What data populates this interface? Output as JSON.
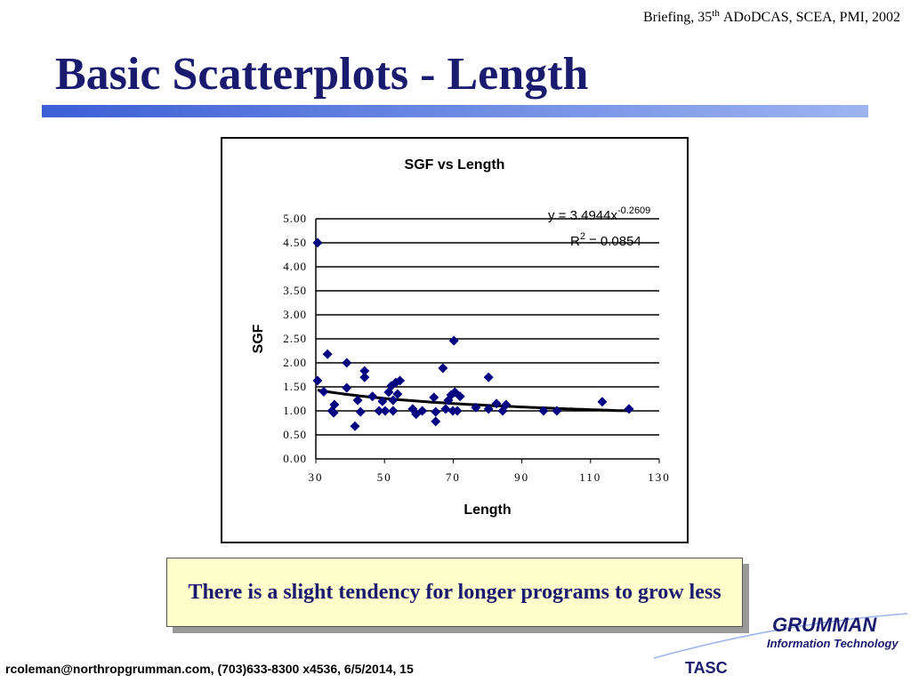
{
  "header": {
    "text": "Briefing, 35",
    "superscript": "th",
    "rest": "ADoDCAS, SCEA, PMI, 2002"
  },
  "title": "Basic Scatterplots - Length",
  "chart_data": {
    "type": "scatter",
    "title": "SGF vs Length",
    "x_label": "Length",
    "y_label": "SGF",
    "color": "#000080",
    "x": [
      30.5,
      30.5,
      32.3,
      33.4,
      34.7,
      35.4,
      35.2,
      39,
      39,
      41.4,
      42.2,
      43,
      44.2,
      44.2,
      46.5,
      48.4,
      49.4,
      50.2,
      51.2,
      52,
      52.5,
      52.5,
      53.3,
      53.8,
      54.5,
      58.2,
      59.2,
      61,
      64.4,
      64.9,
      64.9,
      67,
      67.8,
      68.6,
      69.4,
      69.9,
      70.2,
      70.5,
      71.2,
      72,
      76.6,
      80.3,
      80.3,
      82.6,
      84.4,
      85.4,
      96.3,
      100.2,
      113.4,
      121.2
    ],
    "values": [
      4.5,
      1.63,
      1.4,
      2.18,
      1.0,
      1.13,
      0.96,
      2.0,
      1.48,
      0.68,
      1.22,
      0.98,
      1.83,
      1.7,
      1.3,
      1.0,
      1.2,
      1.0,
      1.39,
      1.52,
      1.0,
      1.22,
      1.59,
      1.35,
      1.63,
      1.04,
      0.93,
      1.0,
      1.28,
      0.98,
      0.78,
      1.89,
      1.04,
      1.22,
      1.33,
      1.0,
      2.46,
      1.39,
      1.0,
      1.3,
      1.07,
      1.7,
      1.04,
      1.15,
      1.0,
      1.13,
      1.0,
      1.0,
      1.19,
      1.04
    ],
    "xlim": [
      30,
      130
    ],
    "xticks": [
      30,
      50,
      70,
      90,
      110,
      130
    ],
    "ylim": [
      0,
      5
    ],
    "yticks": [
      {
        "value": 0,
        "label": "0.00"
      },
      {
        "value": 0.5,
        "label": "0.50"
      },
      {
        "value": 1,
        "label": "1.00"
      },
      {
        "value": 1.5,
        "label": "1.50"
      },
      {
        "value": 2,
        "label": "2.00"
      },
      {
        "value": 2.5,
        "label": "2.50"
      },
      {
        "value": 3,
        "label": "3.00"
      },
      {
        "value": 3.5,
        "label": "3.50"
      },
      {
        "value": 4,
        "label": "4.00"
      },
      {
        "value": 4.5,
        "label": "4.50"
      },
      {
        "value": 5,
        "label": "5.00"
      }
    ],
    "grid": true,
    "trendline": {
      "type": "power",
      "coefficient": 3.4944,
      "exponent": -0.2609,
      "color": "#000000",
      "equation": "y = 3.4944x",
      "exponent_label": "-0.2609",
      "r2_label": "R",
      "r2_superscript": "2",
      "r2_value": "= 0.0854"
    }
  },
  "callout": "There is a slight tendency for longer programs to grow less",
  "logo": {
    "name": "GRUMMAN",
    "subtitle": "Information Technology",
    "company": "TASC"
  },
  "footer": "rcoleman@northropgrumman.com, (703)633-8300 x4536, 6/5/2014, 15"
}
